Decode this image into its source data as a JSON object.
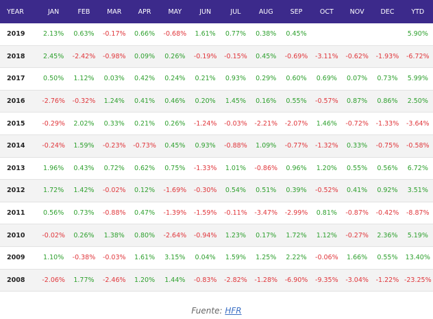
{
  "table": {
    "header": [
      "YEAR",
      "JAN",
      "FEB",
      "MAR",
      "APR",
      "MAY",
      "JUN",
      "JUL",
      "AUG",
      "SEP",
      "OCT",
      "NOV",
      "DEC",
      "YTD"
    ],
    "rows": [
      [
        "2019",
        "2.13%",
        "0.63%",
        "-0.17%",
        "0.66%",
        "-0.68%",
        "1.61%",
        "0.77%",
        "0.38%",
        "0.45%",
        null,
        null,
        null,
        "5.90%"
      ],
      [
        "2018",
        "2.45%",
        "-2.42%",
        "-0.98%",
        "0.09%",
        "0.26%",
        "-0.19%",
        "-0.15%",
        "0.45%",
        "-0.69%",
        "-3.11%",
        "-0.62%",
        "-1.93%",
        "-6.72%"
      ],
      [
        "2017",
        "0.50%",
        "1.12%",
        "0.03%",
        "0.42%",
        "0.24%",
        "0.21%",
        "0.93%",
        "0.29%",
        "0.60%",
        "0.69%",
        "0.07%",
        "0.73%",
        "5.99%"
      ],
      [
        "2016",
        "-2.76%",
        "-0.32%",
        "1.24%",
        "0.41%",
        "0.46%",
        "0.20%",
        "1.45%",
        "0.16%",
        "0.55%",
        "-0.57%",
        "0.87%",
        "0.86%",
        "2.50%"
      ],
      [
        "2015",
        "-0.29%",
        "2.02%",
        "0.33%",
        "0.21%",
        "0.26%",
        "-1.24%",
        "-0.03%",
        "-2.21%",
        "-2.07%",
        "1.46%",
        "-0.72%",
        "-1.33%",
        "-3.64%"
      ],
      [
        "2014",
        "-0.24%",
        "1.59%",
        "-0.23%",
        "-0.73%",
        "0.45%",
        "0.93%",
        "-0.88%",
        "1.09%",
        "-0.77%",
        "-1.32%",
        "0.33%",
        "-0.75%",
        "-0.58%"
      ],
      [
        "2013",
        "1.96%",
        "0.43%",
        "0.72%",
        "0.62%",
        "0.75%",
        "-1.33%",
        "1.01%",
        "-0.86%",
        "0.96%",
        "1.20%",
        "0.55%",
        "0.56%",
        "6.72%"
      ],
      [
        "2012",
        "1.72%",
        "1.42%",
        "-0.02%",
        "0.12%",
        "-1.69%",
        "-0.30%",
        "0.54%",
        "0.51%",
        "0.39%",
        "-0.52%",
        "0.41%",
        "0.92%",
        "3.51%"
      ],
      [
        "2011",
        "0.56%",
        "0.73%",
        "-0.88%",
        "0.47%",
        "-1.39%",
        "-1.59%",
        "-0.11%",
        "-3.47%",
        "-2.99%",
        "0.81%",
        "-0.87%",
        "-0.42%",
        "-8.87%"
      ],
      [
        "2010",
        "-0.02%",
        "0.26%",
        "1.38%",
        "0.80%",
        "-2.64%",
        "-0.94%",
        "1.23%",
        "0.17%",
        "1.72%",
        "1.12%",
        "-0.27%",
        "2.36%",
        "5.19%"
      ],
      [
        "2009",
        "1.10%",
        "-0.38%",
        "-0.03%",
        "1.61%",
        "3.15%",
        "0.04%",
        "1.59%",
        "1.25%",
        "2.22%",
        "-0.06%",
        "1.66%",
        "0.55%",
        "13.40%"
      ],
      [
        "2008",
        "-2.06%",
        "1.77%",
        "-2.46%",
        "1.20%",
        "1.44%",
        "-0.83%",
        "-2.82%",
        "-1.28%",
        "-6.90%",
        "-9.35%",
        "-3.04%",
        "-1.22%",
        "-23.25%"
      ]
    ]
  },
  "caption": {
    "prefix": "Fuente:",
    "link": "HFR"
  }
}
